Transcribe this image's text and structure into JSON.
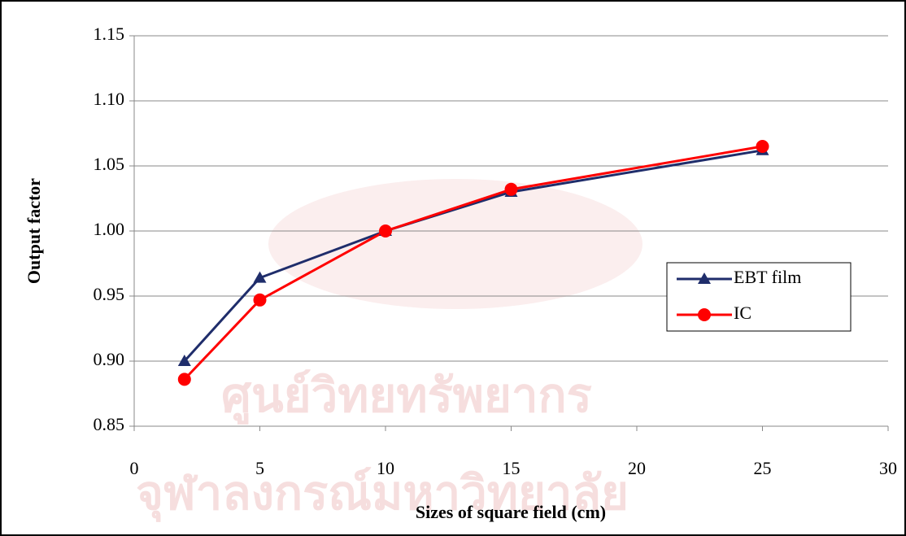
{
  "chart_data": {
    "type": "line",
    "x_label": "Sizes of square field (cm)",
    "y_label": "Output factor",
    "watermark": [
      "ศูนย์วิทยทรัพยากร",
      "จุฬาลงกรณ์มหาวิทยาลัย"
    ],
    "x": [
      2,
      5,
      10,
      15,
      25
    ],
    "series": [
      {
        "name": "EBT film",
        "color": "#1f2d6b",
        "marker": "triangle",
        "values": [
          0.9,
          0.964,
          1.0,
          1.03,
          1.062
        ]
      },
      {
        "name": "IC",
        "color": "#ff0000",
        "marker": "circle",
        "values": [
          0.886,
          0.947,
          1.0,
          1.032,
          1.065
        ]
      }
    ],
    "xlim": [
      0,
      30
    ],
    "xticks": [
      0,
      5,
      10,
      15,
      20,
      25,
      30
    ],
    "ylim": [
      0.85,
      1.15
    ],
    "yticks": [
      0.85,
      0.9,
      0.95,
      1.0,
      1.05,
      1.1,
      1.15
    ],
    "ytick_labels": [
      "0.85",
      "0.90",
      "0.95",
      "1.00",
      "1.05",
      "1.10",
      "1.15"
    ],
    "grid": true,
    "legend": "right"
  }
}
